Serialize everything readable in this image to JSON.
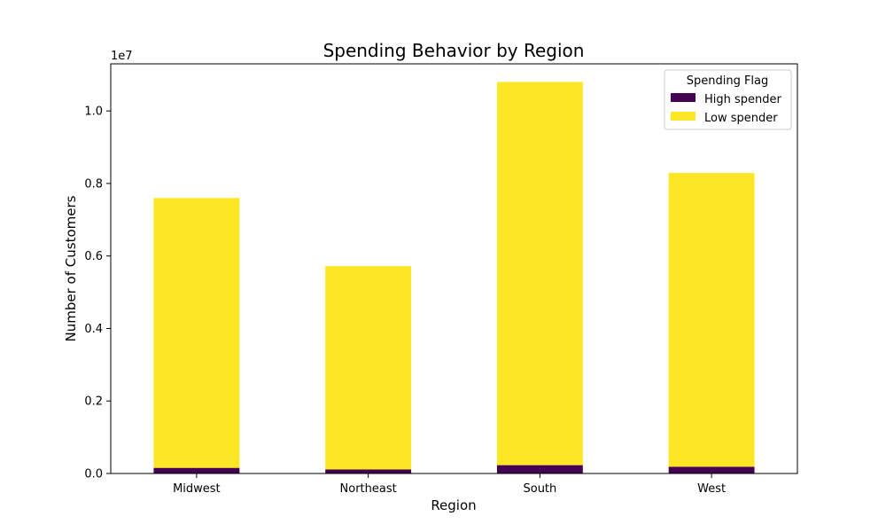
{
  "chart_data": {
    "type": "bar",
    "stacked": true,
    "title": "Spending Behavior by Region",
    "xlabel": "Region",
    "ylabel": "Number of Customers",
    "y_scale_label": "1e7",
    "y_scale": 10000000,
    "ylim": [
      0,
      11300000
    ],
    "yticks": [
      0,
      2000000,
      4000000,
      6000000,
      8000000,
      10000000
    ],
    "ytick_labels": [
      "0.0",
      "0.2",
      "0.4",
      "0.6",
      "0.8",
      "1.0"
    ],
    "categories": [
      "Midwest",
      "Northeast",
      "South",
      "West"
    ],
    "series": [
      {
        "name": "High spender",
        "color": "#440154",
        "values": [
          155000,
          110000,
          230000,
          185000
        ]
      },
      {
        "name": "Low spender",
        "color": "#fde725",
        "values": [
          7445000,
          5610000,
          10570000,
          8105000
        ]
      }
    ],
    "legend": {
      "title": "Spending Flag",
      "placement": "top-right"
    },
    "grid": false
  }
}
